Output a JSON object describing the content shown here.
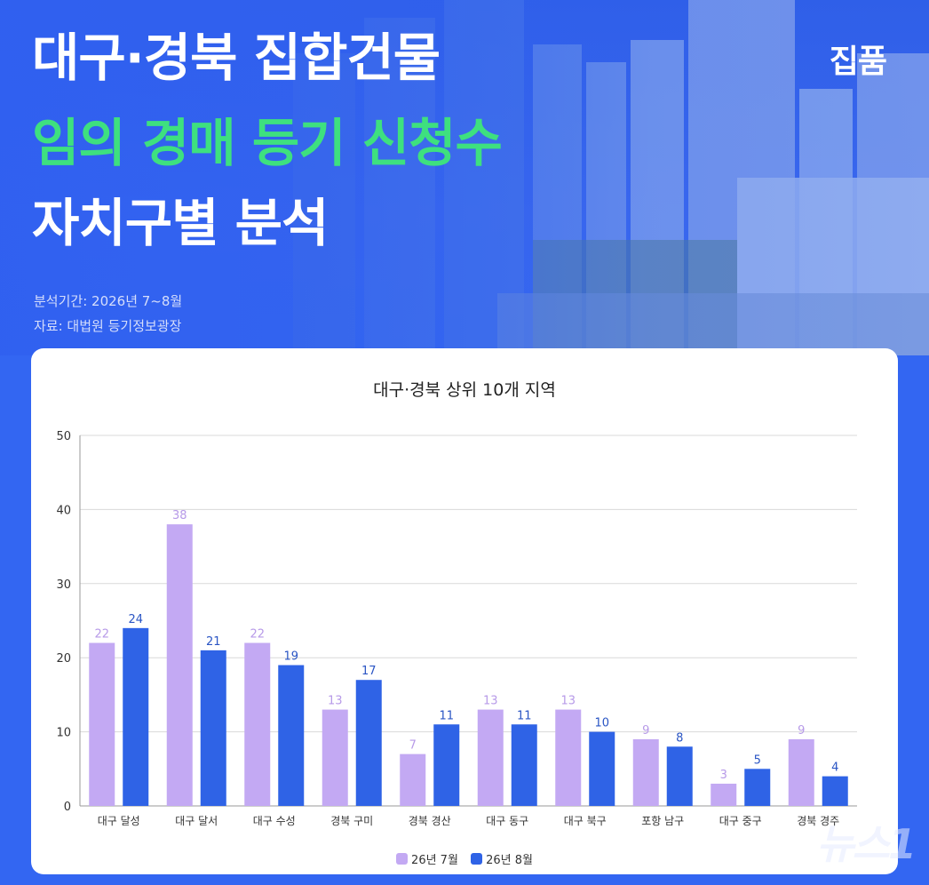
{
  "header": {
    "title_line1": "대구·경북 집합건물",
    "title_line2": "임의 경매 등기 신청수",
    "title_line3": "자치구별 분석",
    "brand": "집품",
    "period": "분석기간: 2026년 7~8월",
    "source": "자료: 대법원 등기정보광장"
  },
  "colors": {
    "series1": "#c3a9f3",
    "series2": "#2f63e6",
    "title_green": "#3ee07f",
    "background": "#3366f2"
  },
  "watermark": "뉴스1",
  "chart_data": {
    "type": "bar",
    "title": "대구·경북 상위 10개 지역",
    "categories": [
      "대구 달성",
      "대구 달서",
      "대구 수성",
      "경북 구미",
      "경북 경산",
      "대구 동구",
      "대구 북구",
      "포항 남구",
      "대구 중구",
      "경북 경주"
    ],
    "series": [
      {
        "name": "26년 7월",
        "values": [
          22,
          38,
          22,
          13,
          7,
          13,
          13,
          9,
          3,
          9
        ]
      },
      {
        "name": "26년 8월",
        "values": [
          24,
          21,
          19,
          17,
          11,
          11,
          10,
          8,
          5,
          4
        ]
      }
    ],
    "ylim": [
      0,
      50
    ],
    "yticks": [
      0,
      10,
      20,
      30,
      40,
      50
    ],
    "grid": true,
    "legend": "bottom"
  }
}
